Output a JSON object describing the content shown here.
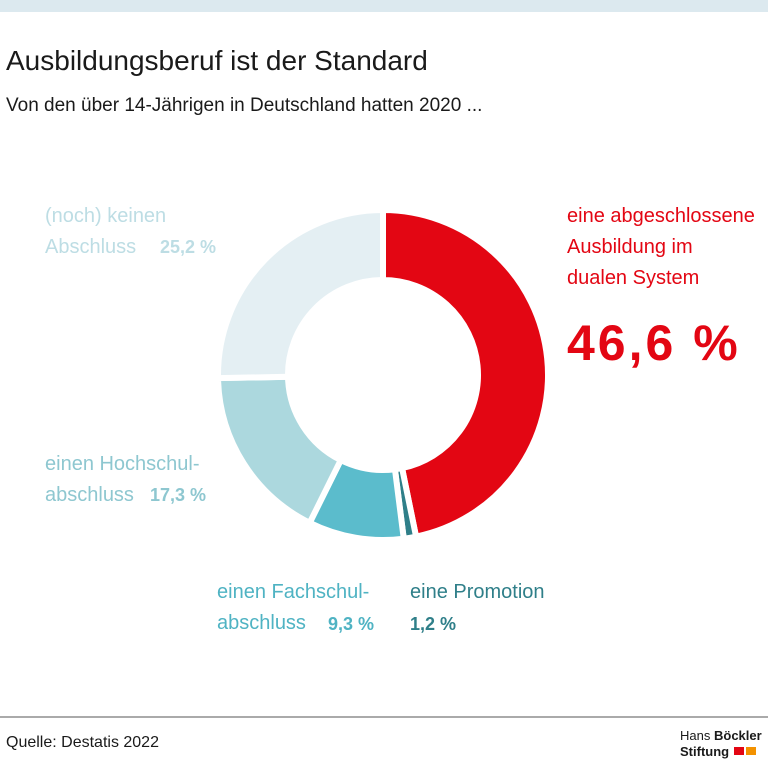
{
  "chart_data": {
    "type": "donut",
    "title": "Ausbildungsberuf ist der Standard",
    "subtitle": "Von den über 14-Jährigen in Deutschland hatten 2020 ...",
    "categories": [
      [
        "eine abgeschlossene",
        "Ausbildung im",
        "dualen System"
      ],
      [
        "eine Promotion"
      ],
      [
        "einen Fachschul-",
        "abschluss"
      ],
      [
        "einen Hochschul-",
        "abschluss"
      ],
      [
        "(noch) keinen",
        "Abschluss"
      ]
    ],
    "values": [
      46.6,
      1.2,
      9.3,
      17.3,
      25.2
    ],
    "value_labels": [
      "46,6 %",
      "1,2 %",
      "9,3 %",
      "17,3 %",
      "25,2 %"
    ],
    "colors": [
      "#e30613",
      "#2f7f89",
      "#5bbccc",
      "#acd8de",
      "#e4eff3"
    ],
    "source": "Quelle: Destatis 2022",
    "brand": [
      "Hans",
      "Böckler",
      "Stiftung"
    ]
  }
}
